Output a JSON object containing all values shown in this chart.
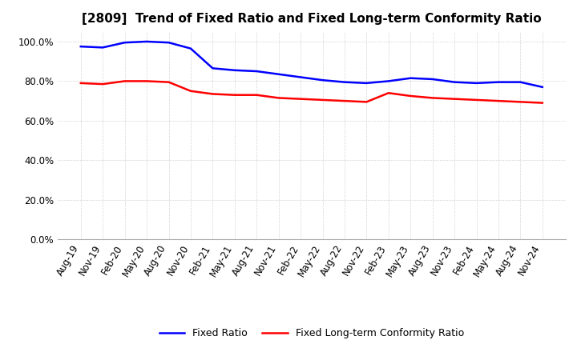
{
  "title": "[2809]  Trend of Fixed Ratio and Fixed Long-term Conformity Ratio",
  "x_labels": [
    "Aug-19",
    "Nov-19",
    "Feb-20",
    "May-20",
    "Aug-20",
    "Nov-20",
    "Feb-21",
    "May-21",
    "Aug-21",
    "Nov-21",
    "Feb-22",
    "May-22",
    "Aug-22",
    "Nov-22",
    "Feb-23",
    "May-23",
    "Aug-23",
    "Nov-23",
    "Feb-24",
    "May-24",
    "Aug-24",
    "Nov-24"
  ],
  "fixed_ratio": [
    97.5,
    97.0,
    99.5,
    100.0,
    99.5,
    96.5,
    86.5,
    85.5,
    85.0,
    83.5,
    82.0,
    80.5,
    79.5,
    79.0,
    80.0,
    81.5,
    81.0,
    79.5,
    79.0,
    79.5,
    79.5,
    77.0
  ],
  "fixed_lt_ratio": [
    79.0,
    78.5,
    80.0,
    80.0,
    79.5,
    75.0,
    73.5,
    73.0,
    73.0,
    71.5,
    71.0,
    70.5,
    70.0,
    69.5,
    74.0,
    72.5,
    71.5,
    71.0,
    70.5,
    70.0,
    69.5,
    69.0
  ],
  "fixed_ratio_color": "#0000FF",
  "fixed_lt_ratio_color": "#FF0000",
  "ylim": [
    0,
    105
  ],
  "yticks": [
    0,
    20,
    40,
    60,
    80,
    100
  ],
  "ytick_labels": [
    "0.0%",
    "20.0%",
    "40.0%",
    "60.0%",
    "80.0%",
    "100.0%"
  ],
  "background_color": "#FFFFFF",
  "plot_bg_color": "#FFFFFF",
  "grid_color": "#AAAAAA",
  "legend_labels": [
    "Fixed Ratio",
    "Fixed Long-term Conformity Ratio"
  ],
  "title_fontsize": 11,
  "tick_fontsize": 8.5,
  "legend_fontsize": 9
}
